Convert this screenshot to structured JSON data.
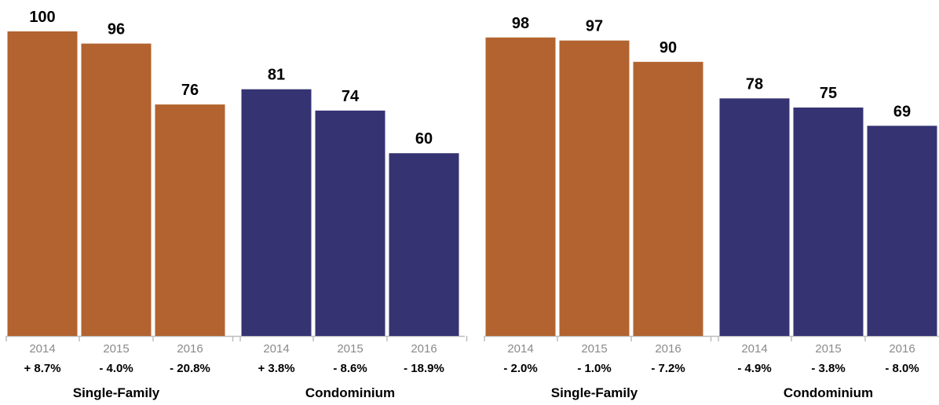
{
  "chart_data": [
    {
      "type": "bar",
      "groups": [
        {
          "name": "Single-Family",
          "color": "#b2632f",
          "bars": [
            {
              "year": "2014",
              "value": 100,
              "value_label": "100",
              "change": "+ 8.7%"
            },
            {
              "year": "2015",
              "value": 96,
              "value_label": "96",
              "change": "- 4.0%"
            },
            {
              "year": "2016",
              "value": 76,
              "value_label": "76",
              "change": "- 20.8%"
            }
          ]
        },
        {
          "name": "Condominium",
          "color": "#363373",
          "bars": [
            {
              "year": "2014",
              "value": 81,
              "value_label": "81",
              "change": "+ 3.8%"
            },
            {
              "year": "2015",
              "value": 74,
              "value_label": "74",
              "change": "- 8.6%"
            },
            {
              "year": "2016",
              "value": 60,
              "value_label": "60",
              "change": "- 18.9%"
            }
          ]
        }
      ],
      "ylim": [
        0,
        100
      ],
      "grid": false,
      "legend": "none"
    },
    {
      "type": "bar",
      "groups": [
        {
          "name": "Single-Family",
          "color": "#b2632f",
          "bars": [
            {
              "year": "2014",
              "value": 98,
              "value_label": "98",
              "change": "- 2.0%"
            },
            {
              "year": "2015",
              "value": 97,
              "value_label": "97",
              "change": "- 1.0%"
            },
            {
              "year": "2016",
              "value": 90,
              "value_label": "90",
              "change": "- 7.2%"
            }
          ]
        },
        {
          "name": "Condominium",
          "color": "#363373",
          "bars": [
            {
              "year": "2014",
              "value": 78,
              "value_label": "78",
              "change": "- 4.9%"
            },
            {
              "year": "2015",
              "value": 75,
              "value_label": "75",
              "change": "- 3.8%"
            },
            {
              "year": "2016",
              "value": 69,
              "value_label": "69",
              "change": "- 8.0%"
            }
          ]
        }
      ],
      "ylim": [
        0,
        100
      ],
      "grid": false,
      "legend": "none"
    }
  ],
  "colors": {
    "axis": "#bdbdbd",
    "year_text": "#8a8a8a"
  }
}
